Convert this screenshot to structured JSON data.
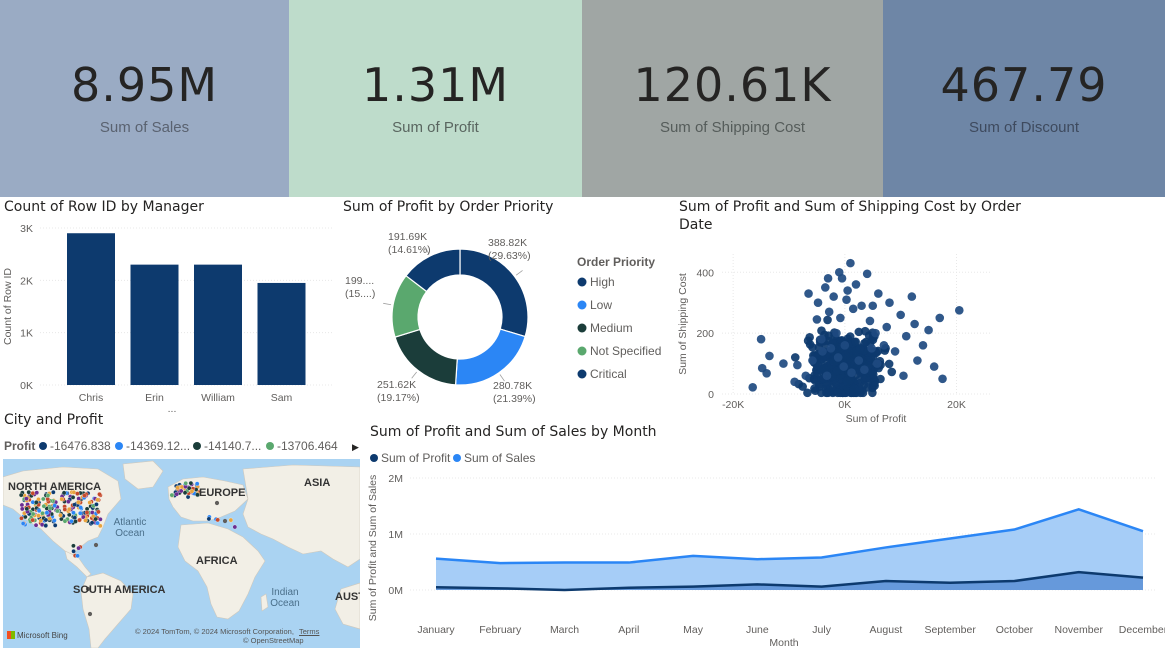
{
  "kpis": [
    {
      "value": "8.95M",
      "label": "Sum of Sales",
      "bg": "#9aabc4",
      "label_color": "#5a6270"
    },
    {
      "value": "1.31M",
      "label": "Sum of Profit",
      "bg": "#bedccb",
      "label_color": "#5a6660"
    },
    {
      "value": "120.61K",
      "label": "Sum of Shipping Cost",
      "bg": "#a0a6a4",
      "label_color": "#555c5a"
    },
    {
      "value": "467.79",
      "label": "Sum of Discount",
      "bg": "#6e86a6",
      "label_color": "#3e4a5e"
    }
  ],
  "colors": {
    "dark_navy": "#0d3a6e",
    "blue": "#2b86f5",
    "dark_green": "#1b3d3a",
    "green": "#5aa86e",
    "light_blue": "#a6cdf7"
  },
  "chart_data": [
    {
      "id": "manager",
      "type": "bar",
      "title": "Count of Row ID by Manager",
      "ylabel": "Count of Row ID",
      "xlabel": "...",
      "categories": [
        "Chris",
        "Erin",
        "William",
        "Sam"
      ],
      "values": [
        2900,
        2300,
        2300,
        1950
      ],
      "ylim": [
        0,
        3000
      ],
      "yticks": [
        {
          "v": 0,
          "t": "0K"
        },
        {
          "v": 1000,
          "t": "1K"
        },
        {
          "v": 2000,
          "t": "2K"
        },
        {
          "v": 3000,
          "t": "3K"
        }
      ]
    },
    {
      "id": "priority",
      "type": "pie",
      "title": "Sum of Profit by Order Priority",
      "legend_title": "Order Priority",
      "legend": [
        "High",
        "Low",
        "Medium",
        "Not Specified",
        "Critical"
      ],
      "slices": [
        {
          "name": "High",
          "value": 388.82,
          "label": "388.82K",
          "pct": "(29.63%)",
          "color": "#0d3a6e"
        },
        {
          "name": "Low",
          "value": 280.78,
          "label": "280.78K",
          "pct": "(21.39%)",
          "color": "#2b86f5"
        },
        {
          "name": "Medium",
          "value": 251.62,
          "label": "251.62K",
          "pct": "(19.17%)",
          "color": "#1b3d3a"
        },
        {
          "name": "Not Specified",
          "value": 199.0,
          "label": "199....",
          "pct": "(15....)",
          "color": "#5aa86e"
        },
        {
          "name": "Critical",
          "value": 191.69,
          "label": "191.69K",
          "pct": "(14.61%)",
          "color": "#0d3a6e"
        }
      ]
    },
    {
      "id": "scatter",
      "type": "scatter",
      "title": "Sum of Profit and Sum of Shipping Cost by Order Date",
      "xlabel": "Sum of Profit",
      "ylabel": "Sum of Shipping Cost",
      "xlim": [
        -22000,
        26000
      ],
      "ylim": [
        0,
        460
      ],
      "xticks": [
        {
          "v": -20000,
          "t": "-20K"
        },
        {
          "v": 0,
          "t": "0K"
        },
        {
          "v": 20000,
          "t": "20K"
        }
      ],
      "yticks": [
        {
          "v": 0,
          "t": "0"
        },
        {
          "v": 200,
          "t": "200"
        },
        {
          "v": 400,
          "t": "400"
        }
      ],
      "points": [
        [
          -16500,
          22
        ],
        [
          -15000,
          180
        ],
        [
          -14800,
          85
        ],
        [
          -14000,
          68
        ],
        [
          -13500,
          125
        ],
        [
          -11000,
          100
        ],
        [
          -9000,
          40
        ],
        [
          -8500,
          95
        ],
        [
          -7000,
          60
        ],
        [
          -6500,
          330
        ],
        [
          -5800,
          110
        ],
        [
          -5000,
          245
        ],
        [
          -4800,
          300
        ],
        [
          -4000,
          140
        ],
        [
          -3500,
          350
        ],
        [
          -3000,
          380
        ],
        [
          -2800,
          270
        ],
        [
          -2000,
          320
        ],
        [
          -1500,
          200
        ],
        [
          -1000,
          400
        ],
        [
          -800,
          250
        ],
        [
          -500,
          380
        ],
        [
          0,
          160
        ],
        [
          300,
          310
        ],
        [
          500,
          340
        ],
        [
          1000,
          430
        ],
        [
          1500,
          280
        ],
        [
          2000,
          360
        ],
        [
          3000,
          290
        ],
        [
          4000,
          395
        ],
        [
          4500,
          240
        ],
        [
          5000,
          290
        ],
        [
          5500,
          200
        ],
        [
          6000,
          330
        ],
        [
          7000,
          160
        ],
        [
          7500,
          220
        ],
        [
          8000,
          300
        ],
        [
          9000,
          140
        ],
        [
          10000,
          260
        ],
        [
          10500,
          60
        ],
        [
          11000,
          190
        ],
        [
          12000,
          320
        ],
        [
          12500,
          230
        ],
        [
          13000,
          110
        ],
        [
          14000,
          160
        ],
        [
          15000,
          210
        ],
        [
          16000,
          90
        ],
        [
          17000,
          250
        ],
        [
          17500,
          50
        ],
        [
          20500,
          275
        ],
        [
          -2500,
          150
        ],
        [
          -1200,
          120
        ],
        [
          -200,
          90
        ],
        [
          1200,
          70
        ],
        [
          2500,
          110
        ],
        [
          3500,
          80
        ],
        [
          -3200,
          60
        ],
        [
          -4200,
          180
        ],
        [
          4800,
          150
        ],
        [
          5800,
          100
        ]
      ],
      "cluster": {
        "cx": 500,
        "cy": 90,
        "sx": 3200,
        "sy": 70,
        "n": 420
      }
    },
    {
      "id": "monthly",
      "type": "area",
      "title": "Sum of Profit and Sum of Sales by Month",
      "xlabel": "Month",
      "ylabel": "Sum of Profit and Sum of Sales",
      "categories": [
        "January",
        "February",
        "March",
        "April",
        "May",
        "June",
        "July",
        "August",
        "September",
        "October",
        "November",
        "December"
      ],
      "ylim": [
        0,
        2000000
      ],
      "yticks": [
        {
          "v": 0,
          "t": "0M"
        },
        {
          "v": 1000000,
          "t": "1M"
        },
        {
          "v": 2000000,
          "t": "2M"
        }
      ],
      "series": [
        {
          "name": "Sum of Profit",
          "color": "#0d3a6e",
          "values": [
            50000,
            30000,
            0,
            40000,
            60000,
            100000,
            60000,
            160000,
            130000,
            160000,
            320000,
            220000
          ]
        },
        {
          "name": "Sum of Sales",
          "color": "#2b86f5",
          "values": [
            560000,
            480000,
            490000,
            490000,
            610000,
            550000,
            580000,
            760000,
            920000,
            1080000,
            1440000,
            1050000
          ]
        }
      ]
    }
  ],
  "map": {
    "title": "City and Profit",
    "legend_label": "Profit",
    "legend": [
      {
        "text": "-16476.838",
        "color": "#0d3a6e"
      },
      {
        "text": "-14369.12...",
        "color": "#2b86f5"
      },
      {
        "text": "-14140.7...",
        "color": "#1b3d3a"
      },
      {
        "text": "-13706.464",
        "color": "#5aa86e"
      }
    ],
    "more_arrow": "▶",
    "labels": {
      "north_america": "NORTH AMERICA",
      "europe": "EUROPE",
      "asia": "ASIA",
      "africa": "AFRICA",
      "south_america": "SOUTH AMERICA",
      "aust": "AUST"
    },
    "oceans": {
      "atlantic": "Atlantic Ocean",
      "indian": "Indian Ocean"
    },
    "attribution": "© 2024 TomTom, © 2024 Microsoft Corporation,",
    "attribution2": "© OpenStreetMap",
    "terms": "Terms",
    "brand": "Microsoft Bing"
  }
}
